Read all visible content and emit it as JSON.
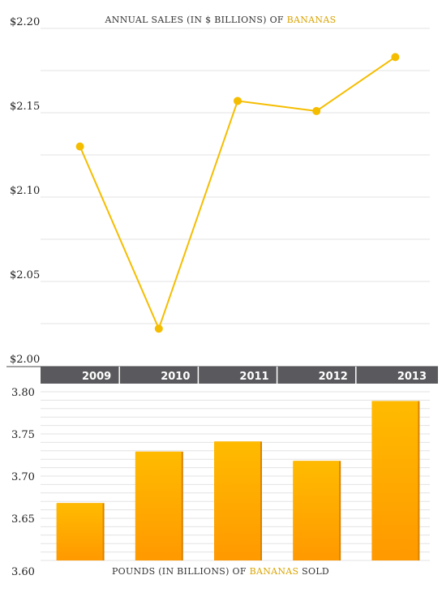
{
  "chart_data": [
    {
      "type": "line",
      "title_parts": [
        "ANNUAL SALES (IN $ BILLIONS) OF ",
        "BANANAS"
      ],
      "x": [
        "2009",
        "2010",
        "2011",
        "2012",
        "2013"
      ],
      "series": [
        {
          "values": [
            2.13,
            2.022,
            2.157,
            2.151,
            2.183
          ],
          "color": "#f5bd00"
        }
      ],
      "ylim": [
        2.0,
        2.2
      ],
      "yticks": [
        2.0,
        2.05,
        2.1,
        2.15,
        2.2
      ],
      "ytick_labels": [
        "$2.00",
        "$2.05",
        "$2.10",
        "$2.15",
        "$2.20"
      ],
      "grid": true
    },
    {
      "type": "bar",
      "title_parts": [
        "POUNDS (IN BILLIONS) OF ",
        "BANANAS",
        " SOLD"
      ],
      "categories": [
        "2009",
        "2010",
        "2011",
        "2012",
        "2013"
      ],
      "values": [
        3.668,
        3.729,
        3.741,
        3.718,
        3.789
      ],
      "ylim": [
        3.6,
        3.8
      ],
      "yticks": [
        3.6,
        3.65,
        3.7,
        3.75,
        3.8
      ],
      "ytick_labels": [
        "3.60",
        "3.65",
        "3.70",
        "3.75",
        "3.80"
      ],
      "grid": true,
      "bar_color_top": "#ffbb00",
      "bar_color_bottom": "#ff9900"
    }
  ],
  "axis_band_color": "#5a5a5e",
  "highlight_color": "#d9a400"
}
